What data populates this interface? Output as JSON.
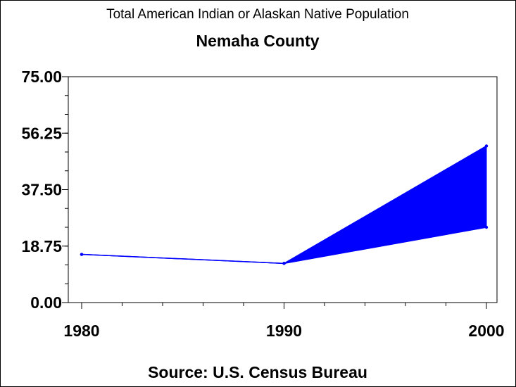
{
  "chart_data": {
    "type": "area",
    "title": "Total American Indian or Alaskan Native Population",
    "subtitle": "Nemaha County",
    "source": "Source: U.S. Census Bureau",
    "xlabel": "",
    "ylabel": "",
    "x_ticks": [
      "1980",
      "1990",
      "2000"
    ],
    "y_ticks": [
      "0.00",
      "18.75",
      "37.50",
      "56.25",
      "75.00"
    ],
    "xlim": [
      1980,
      2000
    ],
    "ylim": [
      0,
      75
    ],
    "y_tick_values": [
      0,
      18.75,
      37.5,
      56.25,
      75
    ],
    "x_minor_step": 2,
    "y_minor_step": 6.25,
    "grid": false,
    "series": [
      {
        "x": [
          1980,
          1990,
          2000
        ],
        "values": [
          16,
          13,
          52
        ]
      },
      {
        "x": [
          1980,
          1990,
          2000
        ],
        "values": [
          16,
          13,
          25
        ]
      }
    ],
    "colors": {
      "fill": "#0000ff",
      "line": "#0000ff",
      "axis": "#000000",
      "text": "#000000"
    }
  }
}
